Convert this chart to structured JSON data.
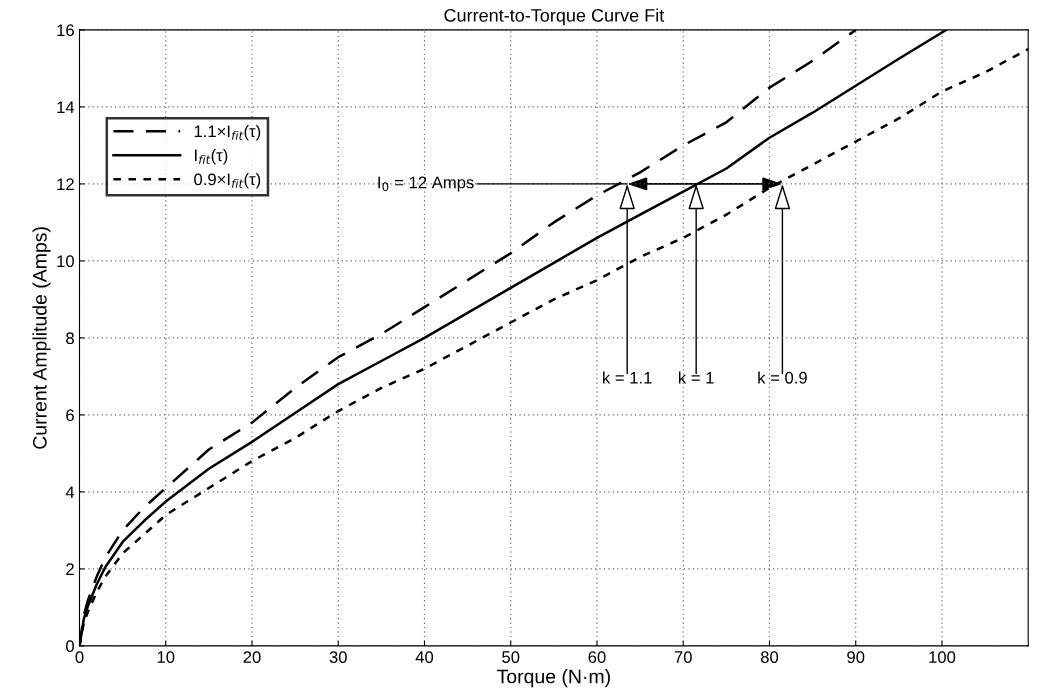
{
  "chart_data": {
    "type": "line",
    "title": "Current-to-Torque Curve Fit",
    "xlabel": "Torque (N·m)",
    "ylabel": "Current Amplitude (Amps)",
    "xlim": [
      0,
      110
    ],
    "xticks": [
      0,
      10,
      20,
      30,
      40,
      50,
      60,
      70,
      80,
      90,
      100
    ],
    "ylim": [
      0,
      16
    ],
    "yticks": [
      0,
      2,
      4,
      6,
      8,
      10,
      12,
      14,
      16
    ],
    "grid": true,
    "legend": "top left",
    "marker": "none",
    "series": [
      {
        "name": "1.1×I$_{fit}$(τ)",
        "color": "#000000",
        "line_style": "dashed",
        "x": [
          0,
          0.5,
          1,
          2,
          3,
          5,
          7.5,
          10,
          15,
          20,
          25,
          30,
          35,
          40,
          45,
          50,
          55,
          60,
          65,
          70,
          75,
          80,
          85,
          90
        ],
        "values": [
          0,
          0.8,
          1.2,
          1.8,
          2.3,
          3.0,
          3.6,
          4.1,
          5.1,
          5.8,
          6.7,
          7.5,
          8.1,
          8.8,
          9.5,
          10.2,
          11.0,
          11.7,
          12.3,
          13.0,
          13.6,
          14.5,
          15.2,
          16.0
        ]
      },
      {
        "name": "I$_{fit}$(τ)",
        "color": "#000000",
        "line_style": "solid",
        "x": [
          0,
          0.5,
          1,
          2,
          3,
          5,
          7.5,
          10,
          15,
          20,
          25,
          30,
          35,
          40,
          45,
          50,
          55,
          60,
          65,
          70,
          75,
          80,
          85,
          90,
          95,
          100.5
        ],
        "values": [
          0,
          0.7,
          1.05,
          1.6,
          2.05,
          2.7,
          3.25,
          3.75,
          4.6,
          5.3,
          6.05,
          6.8,
          7.4,
          8.0,
          8.65,
          9.3,
          9.95,
          10.6,
          11.2,
          11.8,
          12.4,
          13.2,
          13.85,
          14.55,
          15.25,
          16.0
        ]
      },
      {
        "name": "0.9×I$_{fit}$(τ)",
        "color": "#000000",
        "line_style": "dotted",
        "x": [
          0,
          0.5,
          1,
          2,
          3,
          5,
          7.5,
          10,
          15,
          20,
          25,
          30,
          35,
          40,
          45,
          50,
          55,
          60,
          65,
          70,
          75,
          80,
          85,
          90,
          95,
          100,
          105,
          110
        ],
        "values": [
          0,
          0.6,
          0.9,
          1.4,
          1.8,
          2.4,
          2.9,
          3.4,
          4.1,
          4.8,
          5.4,
          6.1,
          6.7,
          7.2,
          7.8,
          8.4,
          9.0,
          9.5,
          10.1,
          10.6,
          11.2,
          11.9,
          12.5,
          13.1,
          13.7,
          14.4,
          14.9,
          15.5
        ]
      }
    ],
    "annotations": [
      {
        "text": "I$_{0}$ = 12 Amps",
        "x": 63.5,
        "y": 12
      },
      {
        "text": "k = 1.1",
        "x": 63.5,
        "y": 12
      },
      {
        "text": "k = 1",
        "x": 71.5,
        "y": 12
      },
      {
        "text": "k = 0.9",
        "x": 81.5,
        "y": 12
      }
    ]
  }
}
